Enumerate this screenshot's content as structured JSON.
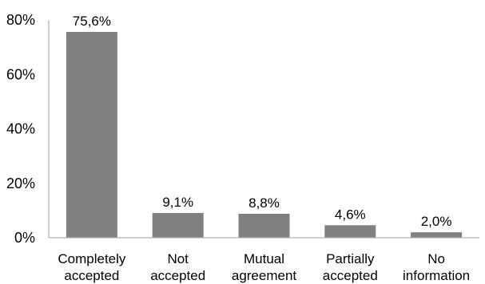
{
  "chart_data": {
    "type": "bar",
    "categories": [
      [
        "Completely",
        "accepted"
      ],
      [
        "Not",
        "accepted"
      ],
      [
        "Mutual",
        "agreement"
      ],
      [
        "Partially",
        "accepted"
      ],
      [
        "No",
        "information"
      ]
    ],
    "values": [
      75.6,
      9.1,
      8.8,
      4.6,
      2.0
    ],
    "data_labels": [
      "75,6%",
      "9,1%",
      "8,8%",
      "4,6%",
      "2,0%"
    ],
    "y_ticks": [
      0,
      20,
      40,
      60,
      80
    ],
    "y_tick_labels": [
      "0%",
      "20%",
      "40%",
      "60%",
      "80%"
    ],
    "ylim": [
      0,
      80
    ],
    "title": "",
    "xlabel": "",
    "ylabel": "",
    "grid": false,
    "legend": "none",
    "colors": {
      "bar": "#808080",
      "axis": "#b0b0b0"
    }
  }
}
